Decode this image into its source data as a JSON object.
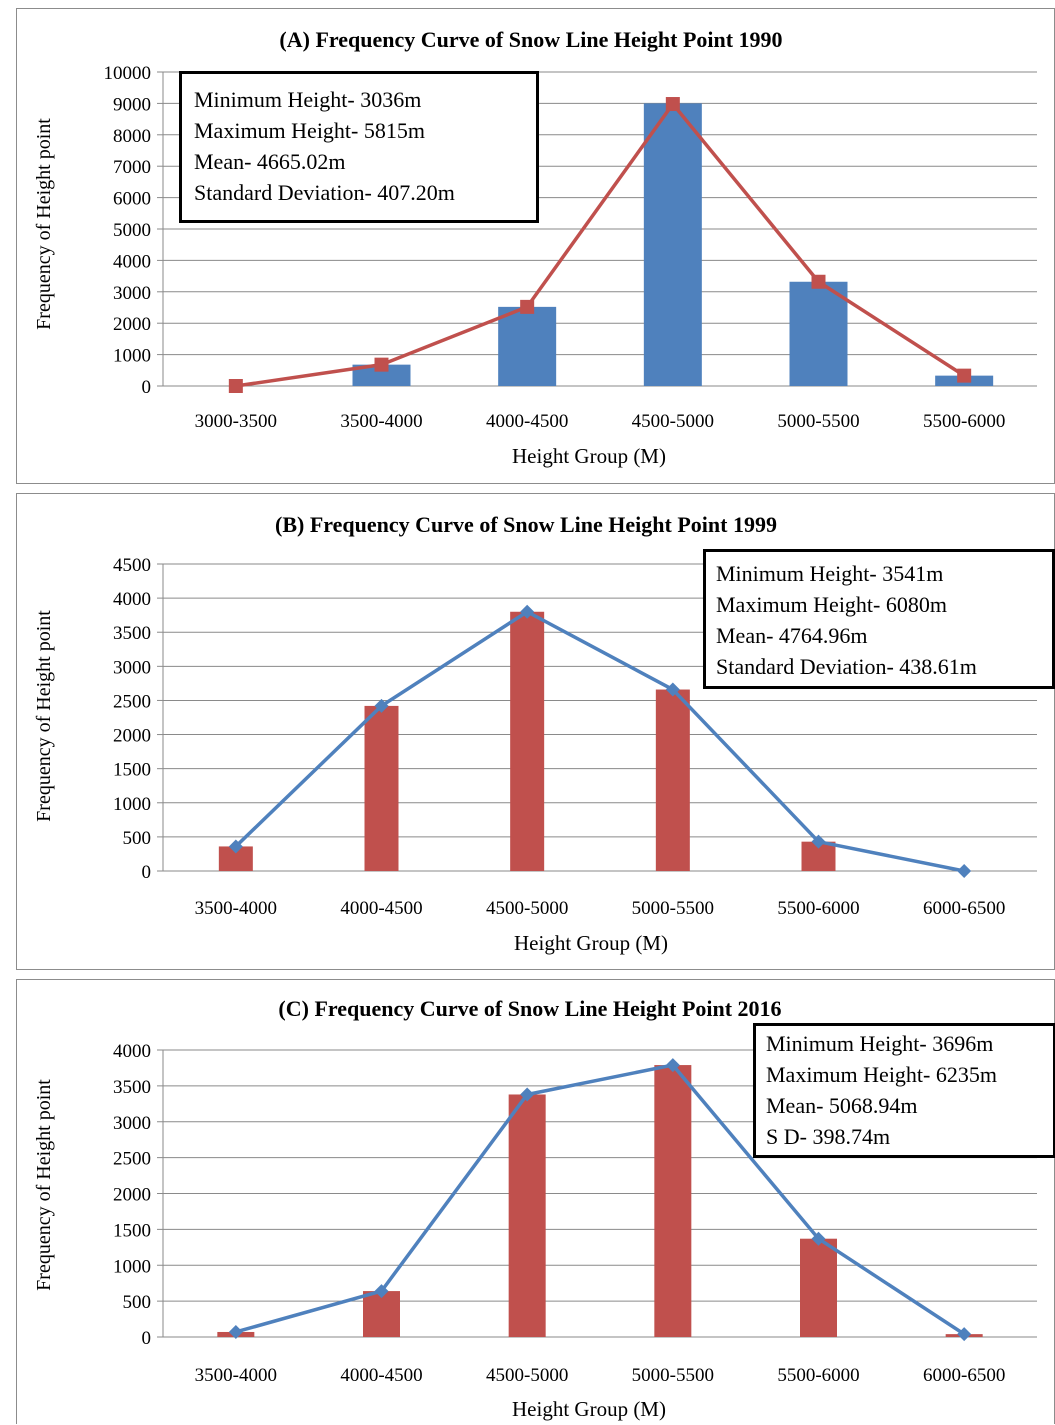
{
  "chart_data": [
    {
      "id": "A",
      "type": "bar",
      "title": "(A)  Frequency Curve of  Snow Line Height Point 1990",
      "xlabel": "Height Group (M)",
      "ylabel": "Frequency of Height point",
      "categories": [
        "3000-3500",
        "3500-4000",
        "4000-4500",
        "4500-5000",
        "5000-5500",
        "5500-6000"
      ],
      "ylim": [
        0,
        10000
      ],
      "yticks": [
        0,
        1000,
        2000,
        3000,
        4000,
        5000,
        6000,
        7000,
        8000,
        9000,
        10000
      ],
      "grid": true,
      "series": [
        {
          "kind": "bar",
          "values": [
            0,
            680,
            2520,
            9000,
            3320,
            330
          ],
          "color": "#4F81BD"
        },
        {
          "kind": "line",
          "marker": "square",
          "values": [
            0,
            680,
            2520,
            8980,
            3320,
            330
          ],
          "color": "#C0504D"
        }
      ],
      "stats": [
        "Minimum Height- 3036m",
        "Maximum Height- 5815m",
        "Mean- 4665.02m",
        "Standard Deviation- 407.20m"
      ]
    },
    {
      "id": "B",
      "type": "bar",
      "title": "(B)  Frequency Curve of  Snow Line Height Point 1999",
      "xlabel": "Height Group (M)",
      "ylabel": "Frequency of Height point",
      "categories": [
        "3500-4000",
        "4000-4500",
        "4500-5000",
        "5000-5500",
        "5500-6000",
        "6000-6500"
      ],
      "ylim": [
        0,
        4500
      ],
      "yticks": [
        0,
        500,
        1000,
        1500,
        2000,
        2500,
        3000,
        3500,
        4000,
        4500
      ],
      "grid": true,
      "series": [
        {
          "kind": "bar",
          "values": [
            360,
            2420,
            3800,
            2660,
            430,
            0
          ],
          "color": "#C0504D"
        },
        {
          "kind": "line",
          "marker": "diamond",
          "values": [
            360,
            2420,
            3800,
            2660,
            430,
            0
          ],
          "color": "#4F81BD"
        }
      ],
      "stats": [
        "Minimum Height- 3541m",
        "Maximum Height- 6080m",
        "Mean- 4764.96m",
        "Standard Deviation- 438.61m"
      ]
    },
    {
      "id": "C",
      "type": "bar",
      "title": "(C)  Frequency Curve of  Snow Line Height Point 2016",
      "xlabel": "Height Group (M)",
      "ylabel": "Frequency of Height point",
      "categories": [
        "3500-4000",
        "4000-4500",
        "4500-5000",
        "5000-5500",
        "5500-6000",
        "6000-6500"
      ],
      "ylim": [
        0,
        4000
      ],
      "yticks": [
        0,
        500,
        1000,
        1500,
        2000,
        2500,
        3000,
        3500,
        4000
      ],
      "grid": true,
      "series": [
        {
          "kind": "bar",
          "values": [
            70,
            640,
            3380,
            3790,
            1370,
            40
          ],
          "color": "#C0504D"
        },
        {
          "kind": "line",
          "marker": "diamond",
          "values": [
            70,
            640,
            3380,
            3790,
            1370,
            40
          ],
          "color": "#4F81BD"
        }
      ],
      "stats": [
        "Minimum Height- 3696m",
        "Maximum Height- 6235m",
        "Mean- 5068.94m",
        "S D- 398.74m"
      ]
    }
  ]
}
